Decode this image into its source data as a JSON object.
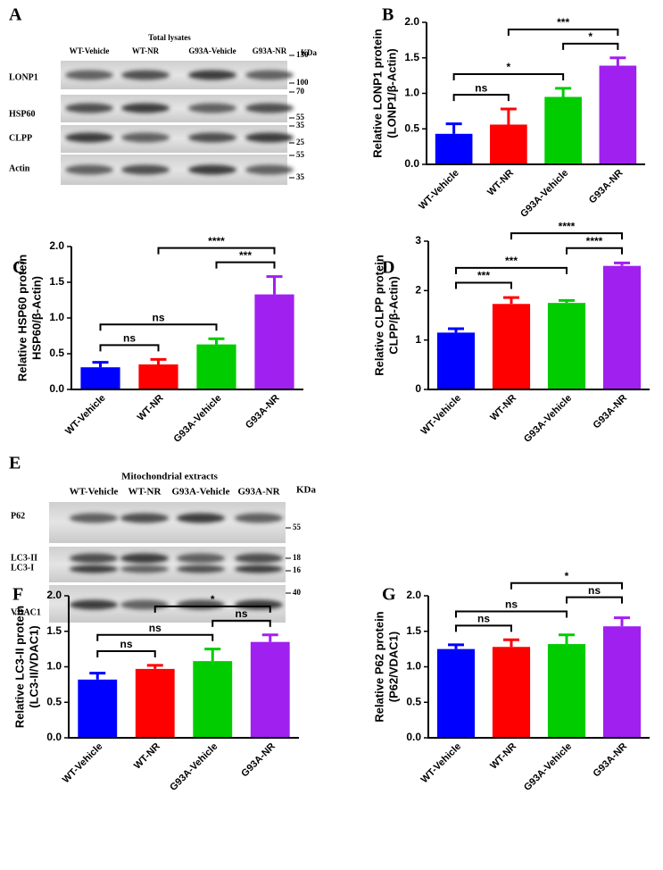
{
  "blots": [
    {
      "panel_label": "A",
      "header": "Total lysates",
      "lanes": [
        "WT-Vehicle",
        "WT-NR",
        "G93A-Vehicle",
        "G93A-NR"
      ],
      "unit": "KDa",
      "rows": [
        {
          "labels": [
            "LONP1"
          ],
          "markers": [
            130,
            100
          ]
        },
        {
          "labels": [
            "HSP60"
          ],
          "markers": [
            70,
            55
          ]
        },
        {
          "labels": [
            "CLPP"
          ],
          "markers": [
            35,
            25
          ]
        },
        {
          "labels": [
            "Actin"
          ],
          "markers": [
            55,
            35
          ]
        }
      ]
    },
    {
      "panel_label": "E",
      "header": "Mitochondrial extracts",
      "lanes": [
        "WT-Vehicle",
        "WT-NR",
        "G93A-Vehicle",
        "G93A-NR"
      ],
      "unit": "KDa",
      "rows": [
        {
          "labels": [
            "P62"
          ],
          "markers": [
            55
          ]
        },
        {
          "labels": [
            "LC3-II",
            "LC3-I"
          ],
          "markers": [
            18,
            16
          ]
        },
        {
          "labels": [
            "VDAC1"
          ],
          "markers": [
            40
          ]
        }
      ]
    }
  ],
  "chart_data": [
    {
      "type": "bar",
      "panel_label": "B",
      "ylabel": [
        "Relative LONP1 protein",
        "(LONP1/β-Actin)"
      ],
      "categories": [
        "WT-Vehicle",
        "WT-NR",
        "G93A-Vehicle",
        "G93A-NR"
      ],
      "values": [
        0.43,
        0.56,
        0.95,
        1.39
      ],
      "errors": [
        0.14,
        0.22,
        0.12,
        0.11
      ],
      "colors": [
        "#0000ff",
        "#ff0000",
        "#00cc00",
        "#a020f0"
      ],
      "ylim": [
        0,
        2
      ],
      "yticks": [
        {
          "value": 0,
          "label": "0.0"
        },
        0.5,
        {
          "value": 1,
          "label": "1.0"
        },
        1.5,
        {
          "value": 2,
          "label": "2.0"
        }
      ],
      "brackets": [
        {
          "from": "WT-Vehicle",
          "to": "WT-NR",
          "label": "ns"
        },
        {
          "from": "WT-Vehicle",
          "to": "G93A-Vehicle",
          "label": "*"
        },
        {
          "from": "G93A-Vehicle",
          "to": "G93A-NR",
          "label": "*"
        },
        {
          "from": "WT-NR",
          "to": "G93A-NR",
          "label": "***"
        }
      ]
    },
    {
      "type": "bar",
      "panel_label": "C",
      "ylabel": [
        "Relative HSP60 protein",
        "HSP60/β-Actin)"
      ],
      "categories": [
        "WT-Vehicle",
        "WT-NR",
        "G93A-Vehicle",
        "G93A-NR"
      ],
      "values": [
        0.31,
        0.35,
        0.63,
        1.33
      ],
      "errors": [
        0.07,
        0.07,
        0.08,
        0.25
      ],
      "colors": [
        "#0000ff",
        "#ff0000",
        "#00cc00",
        "#a020f0"
      ],
      "ylim": [
        0,
        2
      ],
      "yticks": [
        {
          "value": 0,
          "label": "0.0"
        },
        0.5,
        {
          "value": 1,
          "label": "1.0"
        },
        1.5,
        {
          "value": 2,
          "label": "2.0"
        }
      ],
      "brackets": [
        {
          "from": "WT-Vehicle",
          "to": "WT-NR",
          "label": "ns"
        },
        {
          "from": "WT-Vehicle",
          "to": "G93A-Vehicle",
          "label": "ns"
        },
        {
          "from": "G93A-Vehicle",
          "to": "G93A-NR",
          "label": "***"
        },
        {
          "from": "WT-NR",
          "to": "G93A-NR",
          "label": "****"
        }
      ]
    },
    {
      "type": "bar",
      "panel_label": "D",
      "ylabel": [
        "Relative CLPP protein",
        "CLPP/β-Actin)"
      ],
      "categories": [
        "WT-Vehicle",
        "WT-NR",
        "G93A-Vehicle",
        "G93A-NR"
      ],
      "values": [
        1.15,
        1.73,
        1.75,
        2.5
      ],
      "errors": [
        0.08,
        0.13,
        0.05,
        0.06
      ],
      "colors": [
        "#0000ff",
        "#ff0000",
        "#00cc00",
        "#a020f0"
      ],
      "ylim": [
        0,
        3
      ],
      "yticks": [
        0,
        1,
        2,
        3
      ],
      "brackets": [
        {
          "from": "WT-Vehicle",
          "to": "WT-NR",
          "label": "***"
        },
        {
          "from": "WT-Vehicle",
          "to": "G93A-Vehicle",
          "label": "***"
        },
        {
          "from": "G93A-Vehicle",
          "to": "G93A-NR",
          "label": "****"
        },
        {
          "from": "WT-NR",
          "to": "G93A-NR",
          "label": "****"
        }
      ]
    },
    {
      "type": "bar",
      "panel_label": "F",
      "ylabel": [
        "Relative LC3-II protein",
        "(LC3-II/VDAC1)"
      ],
      "categories": [
        "WT-Vehicle",
        "WT-NR",
        "G93A-Vehicle",
        "G93A-NR"
      ],
      "values": [
        0.82,
        0.97,
        1.08,
        1.35
      ],
      "errors": [
        0.09,
        0.05,
        0.17,
        0.1
      ],
      "colors": [
        "#0000ff",
        "#ff0000",
        "#00cc00",
        "#a020f0"
      ],
      "ylim": [
        0,
        2
      ],
      "yticks": [
        {
          "value": 0,
          "label": "0.0"
        },
        0.5,
        {
          "value": 1,
          "label": "1.0"
        },
        1.5,
        {
          "value": 2,
          "label": "2.0"
        }
      ],
      "brackets": [
        {
          "from": "WT-Vehicle",
          "to": "WT-NR",
          "label": "ns"
        },
        {
          "from": "WT-Vehicle",
          "to": "G93A-Vehicle",
          "label": "ns"
        },
        {
          "from": "G93A-Vehicle",
          "to": "G93A-NR",
          "label": "ns"
        },
        {
          "from": "WT-NR",
          "to": "G93A-NR",
          "label": "*"
        }
      ]
    },
    {
      "type": "bar",
      "panel_label": "G",
      "ylabel": [
        "Relative P62 protein",
        "(P62/VDAC1)"
      ],
      "categories": [
        "WT-Vehicle",
        "WT-NR",
        "G93A-Vehicle",
        "G93A-NR"
      ],
      "values": [
        1.25,
        1.28,
        1.32,
        1.57
      ],
      "errors": [
        0.06,
        0.1,
        0.13,
        0.12
      ],
      "colors": [
        "#0000ff",
        "#ff0000",
        "#00cc00",
        "#a020f0"
      ],
      "ylim": [
        0,
        2
      ],
      "yticks": [
        {
          "value": 0,
          "label": "0.0"
        },
        0.5,
        {
          "value": 1,
          "label": "1.0"
        },
        1.5,
        {
          "value": 2,
          "label": "2.0"
        }
      ],
      "brackets": [
        {
          "from": "WT-Vehicle",
          "to": "WT-NR",
          "label": "ns"
        },
        {
          "from": "WT-Vehicle",
          "to": "G93A-Vehicle",
          "label": "ns"
        },
        {
          "from": "G93A-Vehicle",
          "to": "G93A-NR",
          "label": "ns"
        },
        {
          "from": "WT-NR",
          "to": "G93A-NR",
          "label": "*"
        }
      ]
    }
  ]
}
